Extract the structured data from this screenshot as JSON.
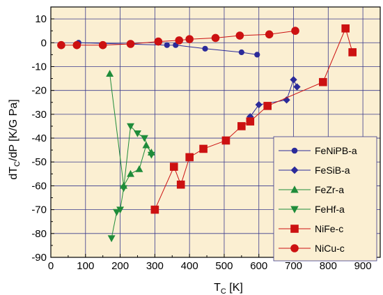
{
  "chart_data": {
    "type": "line",
    "xlabel": {
      "main": "T",
      "sub": "C",
      "unit": " [K]"
    },
    "ylabel": {
      "main": "dT",
      "sub": "C",
      "rest": "/dP  [K/G Pa]"
    },
    "xlim": [
      0,
      950
    ],
    "ylim": [
      -90,
      15
    ],
    "xticks": [
      0,
      100,
      200,
      300,
      400,
      500,
      600,
      700,
      800,
      900
    ],
    "yticks": [
      10,
      0,
      -10,
      -20,
      -30,
      -40,
      -50,
      -60,
      -70,
      -80,
      -90
    ],
    "grid": true,
    "legend_position": "bottom-right",
    "colors": {
      "plot_background": "#fbefd2",
      "grid": "#3a3a8c",
      "axis": "#000000"
    },
    "series": [
      {
        "name": "FeNiPB-a",
        "color": "#2b2b9a",
        "marker": "circle",
        "size": "small",
        "x": [
          80,
          335,
          360,
          445,
          550,
          595
        ],
        "y": [
          0,
          -1,
          -1,
          -2.5,
          -4,
          -5
        ]
      },
      {
        "name": "FeSiB-a",
        "color": "#2b2b9a",
        "marker": "diamond",
        "size": "small",
        "x": [
          575,
          600,
          680,
          700,
          710
        ],
        "y": [
          -31,
          -26,
          -24,
          -15.5,
          -18.5
        ]
      },
      {
        "name": "FeZr-a",
        "color": "#1f8c3a",
        "marker": "triangle-up",
        "size": "small",
        "x": [
          170,
          210,
          230,
          255,
          275,
          290
        ],
        "y": [
          -13,
          -60,
          -55,
          -53,
          -43,
          -46
        ]
      },
      {
        "name": "FeHf-a",
        "color": "#1f8c3a",
        "marker": "triangle-down",
        "size": "small",
        "x": [
          175,
          190,
          200,
          210,
          230,
          250,
          270,
          290
        ],
        "y": [
          -82,
          -71,
          -70,
          -61,
          -35,
          -38,
          -40,
          -47
        ]
      },
      {
        "name": "NiFe-c",
        "color": "#cc1111",
        "marker": "square",
        "size": "large",
        "x": [
          300,
          355,
          375,
          400,
          440,
          505,
          550,
          575,
          625,
          785,
          850,
          870
        ],
        "y": [
          -70,
          -52,
          -59.5,
          -48,
          -44.5,
          -41,
          -35,
          -33,
          -26.5,
          -16.5,
          6,
          -4
        ]
      },
      {
        "name": "NiCu-c",
        "color": "#cc1111",
        "marker": "circle",
        "size": "large",
        "x": [
          30,
          75,
          150,
          230,
          310,
          370,
          400,
          475,
          545,
          630,
          705
        ],
        "y": [
          -1,
          -1,
          -1,
          -0.5,
          0.5,
          1,
          1.5,
          2,
          3,
          3.5,
          5
        ]
      }
    ]
  }
}
